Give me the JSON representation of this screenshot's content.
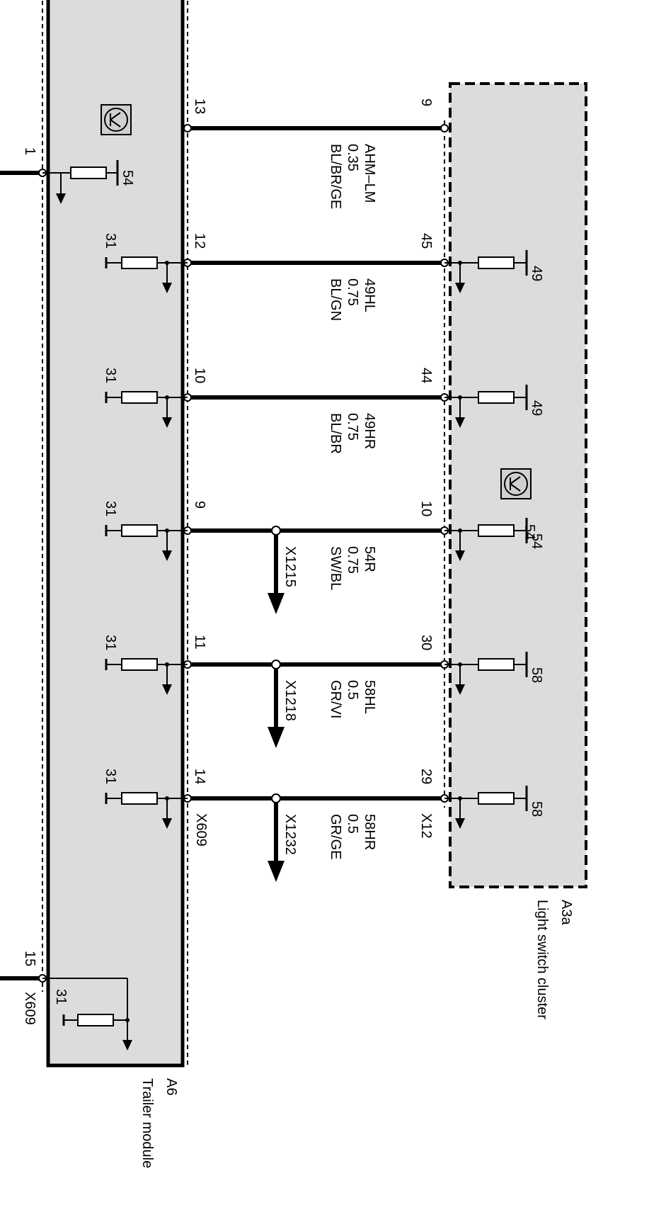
{
  "modules": {
    "trailer": {
      "id": "A6",
      "name": "Trailer module",
      "connector": "X609",
      "ground_pin": "1",
      "ground_label": "54",
      "bottom_pin": "15",
      "bottom_connector": "X609",
      "bottom_ground_label": "31"
    },
    "light_switch": {
      "id": "A3a",
      "name": "Light switch cluster",
      "connector": "X12",
      "center_label": "54"
    }
  },
  "wires": [
    {
      "left_pin": "13",
      "right_pin": "9",
      "signal": "AHM–LM",
      "gauge": "0.35",
      "color": "BL/BR/GE",
      "left_ground": "",
      "right_ground": "",
      "splice": ""
    },
    {
      "left_pin": "12",
      "right_pin": "45",
      "signal": "49HL",
      "gauge": "0.75",
      "color": "BL/GN",
      "left_ground": "31",
      "right_ground": "49",
      "splice": ""
    },
    {
      "left_pin": "10",
      "right_pin": "44",
      "signal": "49HR",
      "gauge": "0.75",
      "color": "BL/BR",
      "left_ground": "31",
      "right_ground": "49",
      "splice": ""
    },
    {
      "left_pin": "9",
      "right_pin": "10",
      "signal": "54R",
      "gauge": "0.75",
      "color": "SW/BL",
      "left_ground": "31",
      "right_ground": "54",
      "splice": "X1215"
    },
    {
      "left_pin": "11",
      "right_pin": "30",
      "signal": "58HL",
      "gauge": "0.5",
      "color": "GR/VI",
      "left_ground": "31",
      "right_ground": "58",
      "splice": "X1218"
    },
    {
      "left_pin": "14",
      "right_pin": "29",
      "signal": "58HR",
      "gauge": "0.5",
      "color": "GR/GE",
      "left_ground": "31",
      "right_ground": "58",
      "splice": "X1232"
    }
  ]
}
